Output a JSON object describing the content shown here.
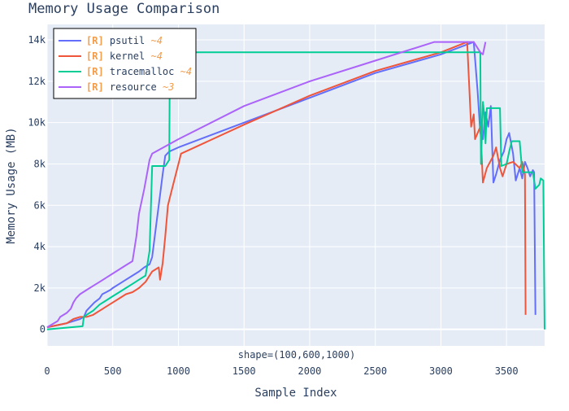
{
  "chart_data": {
    "type": "line",
    "title": "Memory Usage Comparison",
    "xlabel": "Sample Index",
    "ylabel": "Memory Usage (MB)",
    "xlim": [
      0,
      3790
    ],
    "ylim": [
      -800,
      14750
    ],
    "x_ticks": [
      0,
      500,
      1000,
      1500,
      2000,
      2500,
      3000,
      3500
    ],
    "x_tick_labels": [
      "0",
      "500",
      "1000",
      "1500",
      "2000",
      "2500",
      "3000",
      "3500"
    ],
    "y_ticks": [
      0,
      2000,
      4000,
      6000,
      8000,
      10000,
      12000,
      14000
    ],
    "y_tick_labels": [
      "0",
      "2k",
      "4k",
      "6k",
      "8k",
      "10k",
      "12k",
      "14k"
    ],
    "grid": true,
    "legend_position": "top-left",
    "annotation": "shape=(100,600,1000)",
    "series": [
      {
        "name": "psutil",
        "tag": "[R]",
        "approx": "~4",
        "color": "#636efa",
        "points": [
          [
            0,
            100
          ],
          [
            150,
            300
          ],
          [
            250,
            500
          ],
          [
            280,
            600
          ],
          [
            300,
            900
          ],
          [
            330,
            1100
          ],
          [
            360,
            1300
          ],
          [
            400,
            1500
          ],
          [
            420,
            1700
          ],
          [
            450,
            1800
          ],
          [
            480,
            1900
          ],
          [
            500,
            2000
          ],
          [
            550,
            2200
          ],
          [
            600,
            2400
          ],
          [
            650,
            2600
          ],
          [
            700,
            2800
          ],
          [
            740,
            3000
          ],
          [
            780,
            3150
          ],
          [
            800,
            3500
          ],
          [
            830,
            5000
          ],
          [
            860,
            6500
          ],
          [
            880,
            7500
          ],
          [
            900,
            8400
          ],
          [
            930,
            8600
          ],
          [
            1000,
            8800
          ],
          [
            1500,
            10000
          ],
          [
            2000,
            11200
          ],
          [
            2500,
            12400
          ],
          [
            3000,
            13300
          ],
          [
            3250,
            13900
          ],
          [
            3280,
            11500
          ],
          [
            3300,
            9500
          ],
          [
            3320,
            9200
          ],
          [
            3340,
            10500
          ],
          [
            3360,
            9800
          ],
          [
            3380,
            10800
          ],
          [
            3400,
            7100
          ],
          [
            3420,
            7500
          ],
          [
            3450,
            8200
          ],
          [
            3480,
            8600
          ],
          [
            3500,
            9200
          ],
          [
            3520,
            9500
          ],
          [
            3550,
            8500
          ],
          [
            3570,
            7200
          ],
          [
            3600,
            7800
          ],
          [
            3620,
            7300
          ],
          [
            3640,
            8100
          ],
          [
            3660,
            7800
          ],
          [
            3680,
            7400
          ],
          [
            3700,
            7700
          ],
          [
            3710,
            7600
          ],
          [
            3720,
            700
          ]
        ]
      },
      {
        "name": "kernel",
        "tag": "[R]",
        "approx": "~4",
        "color": "#ef553b",
        "points": [
          [
            0,
            100
          ],
          [
            150,
            300
          ],
          [
            200,
            500
          ],
          [
            250,
            600
          ],
          [
            300,
            600
          ],
          [
            350,
            700
          ],
          [
            400,
            900
          ],
          [
            450,
            1100
          ],
          [
            500,
            1300
          ],
          [
            550,
            1500
          ],
          [
            600,
            1700
          ],
          [
            650,
            1800
          ],
          [
            700,
            2000
          ],
          [
            750,
            2300
          ],
          [
            800,
            2800
          ],
          [
            850,
            3000
          ],
          [
            860,
            2400
          ],
          [
            880,
            3200
          ],
          [
            900,
            4500
          ],
          [
            920,
            6000
          ],
          [
            960,
            7000
          ],
          [
            1000,
            8000
          ],
          [
            1020,
            8500
          ],
          [
            1500,
            9900
          ],
          [
            2000,
            11300
          ],
          [
            2500,
            12500
          ],
          [
            3000,
            13400
          ],
          [
            3200,
            13900
          ],
          [
            3230,
            9800
          ],
          [
            3250,
            10400
          ],
          [
            3260,
            9200
          ],
          [
            3300,
            9800
          ],
          [
            3320,
            7100
          ],
          [
            3350,
            7800
          ],
          [
            3400,
            8400
          ],
          [
            3420,
            8800
          ],
          [
            3450,
            7800
          ],
          [
            3470,
            7400
          ],
          [
            3500,
            8000
          ],
          [
            3550,
            8100
          ],
          [
            3600,
            7800
          ],
          [
            3620,
            8100
          ],
          [
            3640,
            7500
          ],
          [
            3645,
            700
          ]
        ]
      },
      {
        "name": "tracemalloc",
        "tag": "[R]",
        "approx": "~4",
        "color": "#00cc96",
        "points": [
          [
            0,
            0
          ],
          [
            270,
            150
          ],
          [
            280,
            600
          ],
          [
            300,
            700
          ],
          [
            350,
            900
          ],
          [
            400,
            1200
          ],
          [
            450,
            1400
          ],
          [
            500,
            1600
          ],
          [
            550,
            1800
          ],
          [
            600,
            2000
          ],
          [
            650,
            2200
          ],
          [
            700,
            2400
          ],
          [
            750,
            2600
          ],
          [
            780,
            3800
          ],
          [
            800,
            7900
          ],
          [
            900,
            7900
          ],
          [
            930,
            8200
          ],
          [
            935,
            13400
          ],
          [
            3300,
            13400
          ],
          [
            3305,
            8000
          ],
          [
            3320,
            11000
          ],
          [
            3330,
            10400
          ],
          [
            3340,
            9000
          ],
          [
            3350,
            10700
          ],
          [
            3450,
            10700
          ],
          [
            3460,
            7900
          ],
          [
            3500,
            8000
          ],
          [
            3520,
            8600
          ],
          [
            3540,
            9100
          ],
          [
            3600,
            9100
          ],
          [
            3620,
            7600
          ],
          [
            3700,
            7600
          ],
          [
            3720,
            6800
          ],
          [
            3750,
            7000
          ],
          [
            3760,
            7300
          ],
          [
            3780,
            7200
          ],
          [
            3790,
            0
          ]
        ]
      },
      {
        "name": "resource",
        "tag": "[R]",
        "approx": "~3",
        "color": "#ab63fa",
        "points": [
          [
            0,
            100
          ],
          [
            80,
            400
          ],
          [
            100,
            600
          ],
          [
            150,
            800
          ],
          [
            180,
            1000
          ],
          [
            200,
            1300
          ],
          [
            220,
            1500
          ],
          [
            250,
            1700
          ],
          [
            300,
            1900
          ],
          [
            350,
            2100
          ],
          [
            400,
            2300
          ],
          [
            450,
            2500
          ],
          [
            500,
            2700
          ],
          [
            550,
            2900
          ],
          [
            600,
            3100
          ],
          [
            650,
            3300
          ],
          [
            680,
            4500
          ],
          [
            700,
            5600
          ],
          [
            740,
            6800
          ],
          [
            780,
            8200
          ],
          [
            800,
            8500
          ],
          [
            1000,
            9200
          ],
          [
            1500,
            10800
          ],
          [
            2000,
            12000
          ],
          [
            2500,
            13000
          ],
          [
            2950,
            13900
          ],
          [
            3200,
            13900
          ],
          [
            3250,
            13900
          ],
          [
            3300,
            13400
          ],
          [
            3320,
            13300
          ],
          [
            3340,
            13900
          ]
        ]
      }
    ]
  }
}
